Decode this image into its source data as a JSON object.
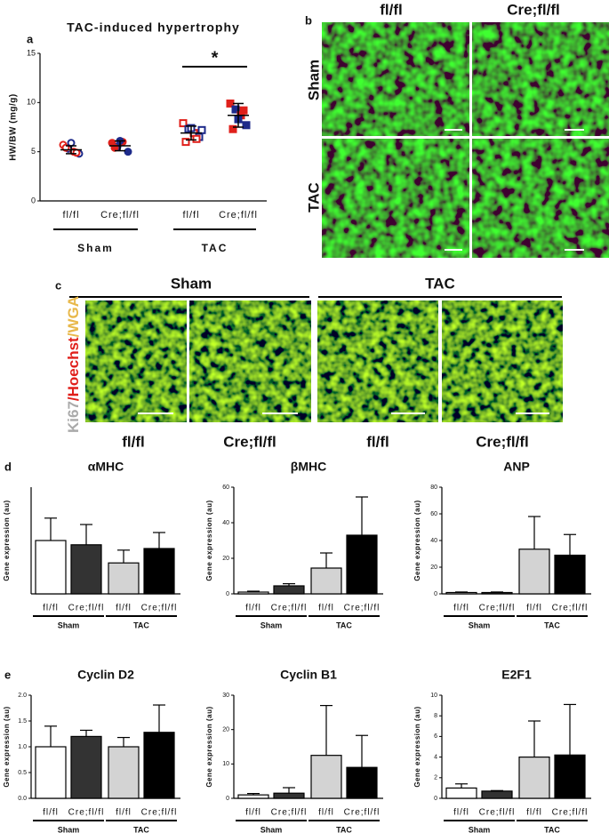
{
  "chart_data": [
    {
      "type": "scatter",
      "label": "a",
      "title": "TAC-induced hypertrophy",
      "ylabel": "HW/BW (mg/g)",
      "categories": [
        "fl/fl",
        "Cre;fl/fl",
        "fl/fl",
        "Cre;fl/fl"
      ],
      "groups": [
        "Sham",
        "TAC"
      ],
      "ylim": [
        0,
        15
      ],
      "yticks": [
        0,
        5,
        10,
        15
      ],
      "points": [
        [
          5.7,
          5.3,
          5.0,
          4.8,
          5.4,
          5.9,
          4.9
        ],
        [
          5.9,
          5.5,
          6.0,
          5.0,
          5.4,
          6.1
        ],
        [
          7.9,
          7.3,
          6.9,
          6.5,
          6.0,
          7.4,
          6.3,
          7.2
        ],
        [
          9.9,
          9.3,
          8.7,
          7.7,
          7.3,
          8.3,
          9.2
        ]
      ],
      "means": [
        5.2,
        5.6,
        6.9,
        8.7
      ],
      "sd": [
        0.4,
        0.5,
        0.7,
        1.2
      ],
      "markers": [
        "circle-open",
        "circle",
        "square-open",
        "square"
      ],
      "point_colors": [
        "#e0201b",
        "#1d2a8a"
      ],
      "significance": {
        "text": "*",
        "from": 2,
        "to": 3
      }
    },
    {
      "type": "bar",
      "label": "d",
      "title": "αMHC",
      "ylabel": "Gene expression (au)",
      "categories": [
        "fl/fl",
        "Cre;fl/fl",
        "fl/fl",
        "Cre;fl/fl"
      ],
      "groups": [
        "Sham",
        "TAC"
      ],
      "values": [
        1.0,
        0.92,
        0.58,
        0.85
      ],
      "errors": [
        0.42,
        0.38,
        0.24,
        0.3
      ],
      "colors": [
        "#ffffff",
        "#333333",
        "#d3d3d3",
        "#000000"
      ],
      "ylim": [
        0,
        2
      ]
    },
    {
      "type": "bar",
      "title": "βMHC",
      "ylabel": "Gene expression (au)",
      "categories": [
        "fl/fl",
        "Cre;fl/fl",
        "fl/fl",
        "Cre;fl/fl"
      ],
      "groups": [
        "Sham",
        "TAC"
      ],
      "values": [
        1,
        4.5,
        14.5,
        33
      ],
      "errors": [
        0.5,
        1.2,
        8.5,
        21.5
      ],
      "colors": [
        "#ffffff",
        "#333333",
        "#d3d3d3",
        "#000000"
      ],
      "ylim": [
        0,
        60
      ],
      "yticks": [
        0,
        20,
        40,
        60
      ]
    },
    {
      "type": "bar",
      "title": "ANP",
      "ylabel": "Gene expression (au)",
      "categories": [
        "fl/fl",
        "Cre;fl/fl",
        "fl/fl",
        "Cre;fl/fl"
      ],
      "groups": [
        "Sham",
        "TAC"
      ],
      "values": [
        1,
        1,
        33.5,
        29
      ],
      "errors": [
        0.4,
        0.4,
        24.5,
        15.5
      ],
      "colors": [
        "#ffffff",
        "#333333",
        "#d3d3d3",
        "#000000"
      ],
      "ylim": [
        0,
        80
      ],
      "yticks": [
        0,
        20,
        40,
        60,
        80
      ]
    },
    {
      "type": "bar",
      "label": "e",
      "title": "Cyclin D2",
      "ylabel": "Gene expression (au)",
      "categories": [
        "fl/fl",
        "Cre;fl/fl",
        "fl/fl",
        "Cre;fl/fl"
      ],
      "groups": [
        "Sham",
        "TAC"
      ],
      "values": [
        1.0,
        1.2,
        1.0,
        1.28
      ],
      "errors": [
        0.4,
        0.12,
        0.18,
        0.53
      ],
      "colors": [
        "#ffffff",
        "#333333",
        "#d3d3d3",
        "#000000"
      ],
      "ylim": [
        0,
        2
      ],
      "yticks": [
        {
          "value": 0,
          "label": "0.0"
        },
        0.5,
        {
          "value": 1,
          "label": "1.0"
        },
        1.5,
        {
          "value": 2,
          "label": "2.0"
        }
      ]
    },
    {
      "type": "bar",
      "title": "Cyclin B1",
      "ylabel": "Gene expression (au)",
      "categories": [
        "fl/fl",
        "Cre;fl/fl",
        "fl/fl",
        "Cre;fl/fl"
      ],
      "groups": [
        "Sham",
        "TAC"
      ],
      "values": [
        1,
        1.5,
        12.5,
        9
      ],
      "errors": [
        0.4,
        1.6,
        14.5,
        9.3
      ],
      "colors": [
        "#ffffff",
        "#333333",
        "#d3d3d3",
        "#000000"
      ],
      "ylim": [
        0,
        30
      ],
      "yticks": [
        0,
        10,
        20,
        30
      ]
    },
    {
      "type": "bar",
      "title": "E2F1",
      "ylabel": "Gene expression (au)",
      "categories": [
        "fl/fl",
        "Cre;fl/fl",
        "fl/fl",
        "Cre;fl/fl"
      ],
      "groups": [
        "Sham",
        "TAC"
      ],
      "values": [
        1,
        0.7,
        4,
        4.2
      ],
      "errors": [
        0.4,
        0.05,
        3.5,
        4.9
      ],
      "colors": [
        "#ffffff",
        "#333333",
        "#d3d3d3",
        "#000000"
      ],
      "ylim": [
        0,
        10
      ],
      "yticks": [
        0,
        2,
        4,
        6,
        8,
        10
      ]
    }
  ],
  "panel_b": {
    "label": "b",
    "columns": [
      "fl/fl",
      "Cre;fl/fl"
    ],
    "rows": [
      "Sham",
      "TAC"
    ]
  },
  "panel_c": {
    "label": "c",
    "groups": [
      "Sham",
      "TAC"
    ],
    "stain": [
      "Ki67",
      "/Hoechst",
      "/WGA"
    ],
    "columns": [
      "fl/fl",
      "Cre;fl/fl",
      "fl/fl",
      "Cre;fl/fl"
    ]
  }
}
